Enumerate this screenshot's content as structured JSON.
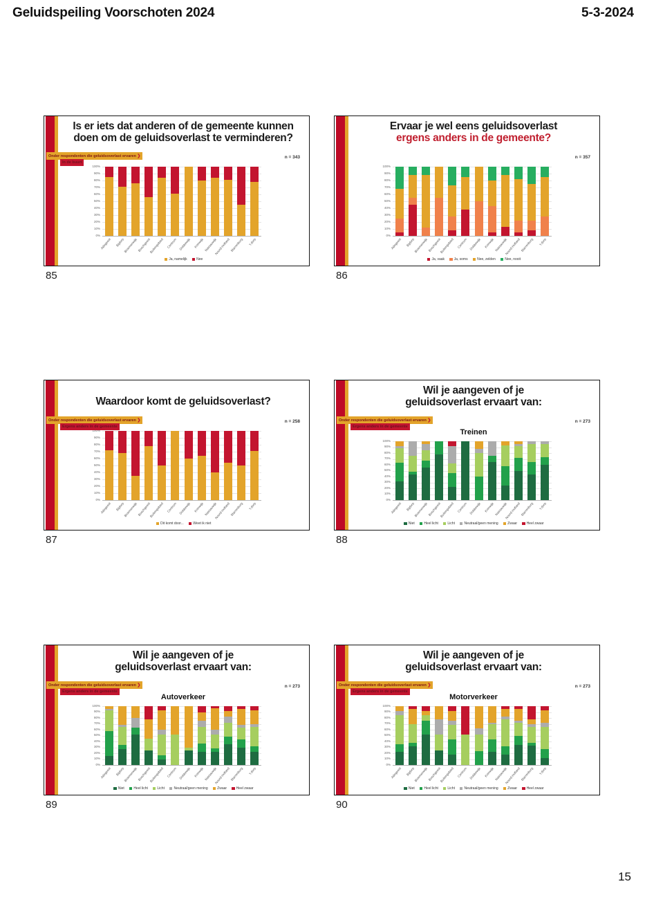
{
  "page": {
    "header": {
      "title": "Geluidspeiling Voorschoten 2024",
      "date": "5-3-2024"
    },
    "page_number": "15"
  },
  "icons": {
    "chevron": "❯"
  },
  "colors": {
    "stripe_red": "#BE0A26",
    "stripe_gold": "#E3A42B",
    "title_red": "#C01F2F",
    "bar_gold": "#E3A42B",
    "bar_red": "#C3152F",
    "bar_orange": "#F0814B",
    "bar_green": "#27AE60",
    "bar_darkgreen": "#1E6C41",
    "bar_midgreen": "#22A14B",
    "bar_lightgreen": "#A6CE5F",
    "bar_gray": "#ACACAC"
  },
  "slides": [
    {
      "number": "85",
      "title_line1": "Is er iets dat anderen of de gemeente kunnen",
      "title_line2": "doen om de geluidsoverlast te verminderen?",
      "title_line2_color": null,
      "badges": {
        "yellow": "Onder respondenten die geluidsoverlast ervaren",
        "red": "In de buurt"
      },
      "n_label": "n = 343",
      "subtitle": "",
      "chart_data": {
        "type": "bar",
        "stacked": true,
        "ylim": [
          0,
          100
        ],
        "ytick_step": 10,
        "grid": true,
        "legend_position": "bottom",
        "categories": [
          "Adegeest",
          "Bijdorp",
          "Bloemenwijk",
          "Boschgeest",
          "Buitengebied",
          "Centrum",
          "Dobbewijk",
          "Krimwijk",
          "Nassauwijk",
          "Noord-Hofland",
          "Starrenburg",
          "'t dorp"
        ],
        "series": [
          {
            "name": "Ja, namelijk",
            "color": "#E3A42B",
            "values": [
              85,
              71,
              76,
              56,
              84,
              61,
              100,
              80,
              84,
              81,
              45,
              78
            ]
          },
          {
            "name": "Nee",
            "color": "#C3152F",
            "values": [
              15,
              29,
              24,
              44,
              16,
              39,
              0,
              20,
              16,
              19,
              55,
              22
            ]
          }
        ]
      }
    },
    {
      "number": "86",
      "title_line1": "Ervaar je wel eens geluidsoverlast",
      "title_line2": "ergens anders in de gemeente?",
      "title_line2_color": "#C01F2F",
      "badges": null,
      "n_label": "n = 357",
      "subtitle": "",
      "chart_data": {
        "type": "bar",
        "stacked": true,
        "ylim": [
          0,
          100
        ],
        "ytick_step": 10,
        "grid": true,
        "legend_position": "bottom",
        "categories": [
          "Adegeest",
          "Bijdorp",
          "Bloemenwijk",
          "Boschgeest",
          "Buitengebied",
          "Centrum",
          "Dobbewijk",
          "Krimwijk",
          "Nassauwijk",
          "Noord-Hofland",
          "Starrenburg",
          "'t dorp"
        ],
        "series": [
          {
            "name": "Ja, vaak",
            "color": "#C3152F",
            "values": [
              5,
              45,
              0,
              0,
              8,
              38,
              0,
              5,
              13,
              5,
              8,
              0
            ]
          },
          {
            "name": "Ja, soms",
            "color": "#F0814B",
            "values": [
              20,
              10,
              12,
              55,
              20,
              0,
              50,
              38,
              0,
              17,
              14,
              28
            ]
          },
          {
            "name": "Nee, zelden",
            "color": "#E3A42B",
            "values": [
              43,
              33,
              76,
              45,
              45,
              47,
              50,
              37,
              75,
              60,
              53,
              57
            ]
          },
          {
            "name": "Nee, nooit",
            "color": "#27AE60",
            "values": [
              32,
              12,
              12,
              0,
              27,
              15,
              0,
              20,
              12,
              18,
              25,
              15
            ]
          }
        ]
      }
    },
    {
      "number": "87",
      "title_line1": "Waardoor komt de geluidsoverlast?",
      "title_line2": "",
      "title_line2_color": null,
      "badges": {
        "yellow": "Onder respondenten die geluidsoverlast ervaren",
        "red": "Ergens anders in de gemeente"
      },
      "n_label": "n = 258",
      "subtitle": "",
      "chart_data": {
        "type": "bar",
        "stacked": true,
        "ylim": [
          0,
          100
        ],
        "ytick_step": 10,
        "grid": true,
        "legend_position": "bottom",
        "categories": [
          "Adegeest",
          "Bijdorp",
          "Bloemenwijk",
          "Boschgeest",
          "Buitengebied",
          "Centrum",
          "Dobbewijk",
          "Krimwijk",
          "Nassauwijk",
          "Noord-Hofland",
          "Starrenburg",
          "'t dorp"
        ],
        "series": [
          {
            "name": "Dit komt door...",
            "color": "#E3A42B",
            "values": [
              72,
              68,
              35,
              78,
              50,
              100,
              60,
              64,
              40,
              54,
              50,
              71
            ]
          },
          {
            "name": "Weet ik niet",
            "color": "#C3152F",
            "values": [
              28,
              32,
              65,
              22,
              50,
              0,
              40,
              36,
              60,
              46,
              50,
              29
            ]
          }
        ]
      }
    },
    {
      "number": "88",
      "title_line1": "Wil je aangeven of je",
      "title_line2": "geluidsoverlast ervaart van:",
      "title_line2_color": null,
      "badges": {
        "yellow": "Onder respondenten die geluidsoverlast ervaren",
        "red": "Ergens anders in de gemeente"
      },
      "n_label": "n = 273",
      "subtitle": "Treinen",
      "chart_data": {
        "type": "bar",
        "stacked": true,
        "ylim": [
          0,
          100
        ],
        "ytick_step": 10,
        "grid": true,
        "legend_position": "bottom",
        "categories": [
          "Adegeest",
          "Bijdorp",
          "Bloemenwijk",
          "Boschgeest",
          "Buitengebied",
          "Centrum",
          "Dobbewijk",
          "Krimwijk",
          "Nassauwijk",
          "Noord-Hofland",
          "Starrenburg",
          "'t dorp"
        ],
        "series": [
          {
            "name": "Niet",
            "color": "#1E6C41",
            "values": [
              32,
              44,
              55,
              78,
              22,
              100,
              0,
              65,
              25,
              50,
              44,
              60
            ]
          },
          {
            "name": "Heel licht",
            "color": "#22A14B",
            "values": [
              31,
              4,
              12,
              22,
              24,
              0,
              40,
              10,
              33,
              22,
              21,
              13
            ]
          },
          {
            "name": "Licht",
            "color": "#A6CE5F",
            "values": [
              25,
              27,
              18,
              0,
              16,
              0,
              40,
              0,
              35,
              20,
              30,
              22
            ]
          },
          {
            "name": "Neutraal/geen mening",
            "color": "#ACACAC",
            "values": [
              4,
              25,
              10,
              0,
              30,
              0,
              7,
              25,
              0,
              3,
              5,
              5
            ]
          },
          {
            "name": "Zwaar",
            "color": "#E3A42B",
            "values": [
              8,
              0,
              5,
              0,
              0,
              0,
              13,
              0,
              7,
              5,
              0,
              0
            ]
          },
          {
            "name": "Heel zwaar",
            "color": "#C3152F",
            "values": [
              0,
              0,
              0,
              0,
              8,
              0,
              0,
              0,
              0,
              0,
              0,
              0
            ]
          }
        ]
      }
    },
    {
      "number": "89",
      "title_line1": "Wil je aangeven of je",
      "title_line2": "geluidsoverlast ervaart van:",
      "title_line2_color": null,
      "badges": {
        "yellow": "Onder respondenten die geluidsoverlast ervaren",
        "red": "Ergens anders in de gemeente"
      },
      "n_label": "n = 273",
      "subtitle": "Autoverkeer",
      "chart_data": {
        "type": "bar",
        "stacked": true,
        "ylim": [
          0,
          100
        ],
        "ytick_step": 10,
        "grid": true,
        "legend_position": "bottom",
        "categories": [
          "Adegeest",
          "Bijdorp",
          "Bloemenwijk",
          "Boschgeest",
          "Buitengebied",
          "Centrum",
          "Dobbewijk",
          "Krimwijk",
          "Nassauwijk",
          "Noord-Hofland",
          "Starrenburg",
          "'t dorp"
        ],
        "series": [
          {
            "name": "Niet",
            "color": "#1E6C41",
            "values": [
              15,
              27,
              52,
              25,
              10,
              0,
              25,
              22,
              22,
              35,
              30,
              22
            ]
          },
          {
            "name": "Heel licht",
            "color": "#22A14B",
            "values": [
              43,
              7,
              11,
              0,
              7,
              0,
              0,
              14,
              6,
              13,
              14,
              10
            ]
          },
          {
            "name": "Licht",
            "color": "#A6CE5F",
            "values": [
              35,
              31,
              0,
              20,
              35,
              52,
              5,
              29,
              24,
              24,
              20,
              33
            ]
          },
          {
            "name": "Neutraal/geen mening",
            "color": "#ACACAC",
            "values": [
              2,
              3,
              17,
              0,
              8,
              0,
              0,
              10,
              8,
              10,
              4,
              5
            ]
          },
          {
            "name": "Zwaar",
            "color": "#E3A42B",
            "values": [
              5,
              32,
              20,
              33,
              33,
              48,
              70,
              15,
              36,
              10,
              27,
              23
            ]
          },
          {
            "name": "Heel zwaar",
            "color": "#C3152F",
            "values": [
              0,
              0,
              0,
              22,
              7,
              0,
              0,
              10,
              4,
              8,
              5,
              7
            ]
          }
        ]
      }
    },
    {
      "number": "90",
      "title_line1": "Wil je aangeven of je",
      "title_line2": "geluidsoverlast ervaart van:",
      "title_line2_color": null,
      "badges": {
        "yellow": "Onder respondenten die geluidsoverlast ervaren",
        "red": "Ergens anders in de gemeente"
      },
      "n_label": "n = 273",
      "subtitle": "Motorverkeer",
      "chart_data": {
        "type": "bar",
        "stacked": true,
        "ylim": [
          0,
          100
        ],
        "ytick_step": 10,
        "grid": true,
        "legend_position": "bottom",
        "categories": [
          "Adegeest",
          "Bijdorp",
          "Bloemenwijk",
          "Boschgeest",
          "Buitengebied",
          "Centrum",
          "Dobbewijk",
          "Krimwijk",
          "Nassauwijk",
          "Noord-Hofland",
          "Starrenburg",
          "'t dorp"
        ],
        "series": [
          {
            "name": "Niet",
            "color": "#1E6C41",
            "values": [
              22,
              32,
              52,
              25,
              18,
              0,
              0,
              22,
              18,
              34,
              33,
              12
            ]
          },
          {
            "name": "Heel licht",
            "color": "#22A14B",
            "values": [
              13,
              6,
              23,
              0,
              25,
              0,
              23,
              21,
              14,
              16,
              5,
              15
            ]
          },
          {
            "name": "Licht",
            "color": "#A6CE5F",
            "values": [
              50,
              32,
              10,
              27,
              25,
              52,
              29,
              27,
              46,
              22,
              27,
              38
            ]
          },
          {
            "name": "Neutraal/geen mening",
            "color": "#ACACAC",
            "values": [
              7,
              0,
              0,
              26,
              7,
              0,
              10,
              2,
              4,
              3,
              5,
              7
            ]
          },
          {
            "name": "Zwaar",
            "color": "#E3A42B",
            "values": [
              8,
              25,
              7,
              22,
              17,
              0,
              38,
              28,
              13,
              20,
              8,
              21
            ]
          },
          {
            "name": "Heel zwaar",
            "color": "#C3152F",
            "values": [
              0,
              5,
              8,
              0,
              8,
              48,
              0,
              0,
              5,
              5,
              22,
              7
            ]
          }
        ]
      }
    }
  ]
}
